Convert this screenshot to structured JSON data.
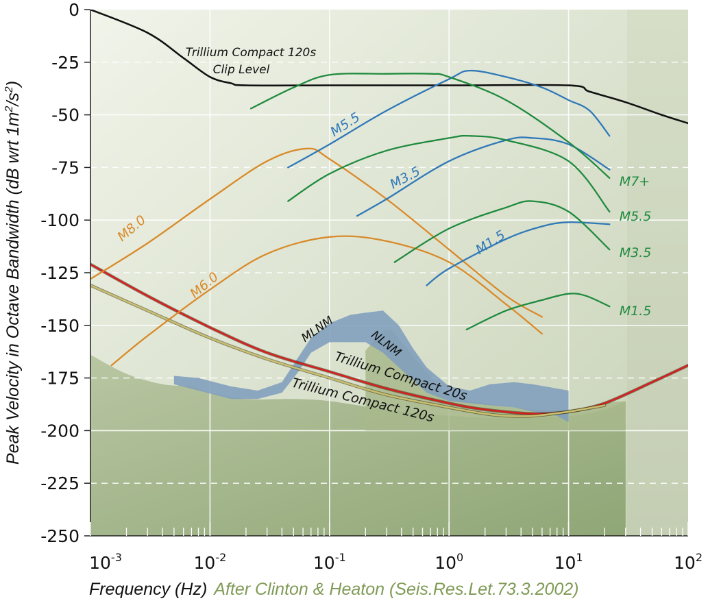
{
  "chart_data": {
    "type": "line",
    "xscale": "log",
    "xlim": [
      0.001,
      100
    ],
    "ylim": [
      -250,
      0
    ],
    "grid": true,
    "ylabel_parts": [
      "Peak Velocity in Octave Bandwidth (dB wrt 1m",
      "2",
      "/s",
      "2",
      ")"
    ],
    "xlabel": "Frequency (Hz)",
    "source_note": "After Clinton & Heaton (Seis.Res.Let.73.3.2002)",
    "y_ticks": [
      0,
      -25,
      -50,
      -75,
      -100,
      -125,
      -150,
      -175,
      -200,
      -225,
      -250
    ],
    "y_tick_labels": [
      "0",
      "-25",
      "-50",
      "-75",
      "-100",
      "-125",
      "-150",
      "-175",
      "-200",
      "-225",
      "-250"
    ],
    "x_ticks": [
      0.001,
      0.01,
      0.1,
      1,
      10,
      100
    ],
    "x_tick_labels": [
      {
        "base": "10",
        "exp": "-3"
      },
      {
        "base": "10",
        "exp": "-2"
      },
      {
        "base": "10",
        "exp": "-1"
      },
      {
        "base": "10",
        "exp": "0"
      },
      {
        "base": "10",
        "exp": "1"
      },
      {
        "base": "10",
        "exp": "2"
      }
    ],
    "regions": [
      {
        "name": "NLNM",
        "label": "NLNM",
        "color": "#a8b98c",
        "points": [
          [
            0.2,
            -162
          ],
          [
            0.3,
            -152
          ],
          [
            0.4,
            -158
          ],
          [
            0.6,
            -170
          ],
          [
            1,
            -183
          ],
          [
            2,
            -187
          ],
          [
            5,
            -190
          ],
          [
            10,
            -190
          ],
          [
            20,
            -187
          ],
          [
            30,
            -186
          ]
        ]
      },
      {
        "name": "MLNM",
        "label": "MLNM",
        "color": "#7f9ebd",
        "upper": [
          [
            0.005,
            -174
          ],
          [
            0.008,
            -175
          ],
          [
            0.015,
            -179
          ],
          [
            0.025,
            -181
          ],
          [
            0.04,
            -177
          ],
          [
            0.055,
            -165
          ],
          [
            0.07,
            -156
          ],
          [
            0.1,
            -149
          ],
          [
            0.15,
            -145
          ],
          [
            0.2,
            -144
          ],
          [
            0.28,
            -143
          ],
          [
            0.38,
            -150
          ],
          [
            0.5,
            -161
          ],
          [
            0.65,
            -170
          ],
          [
            1.0,
            -179
          ],
          [
            1.5,
            -181
          ],
          [
            2.2,
            -178
          ],
          [
            3.5,
            -177
          ],
          [
            5,
            -178
          ],
          [
            8,
            -180
          ],
          [
            10,
            -181
          ]
        ],
        "lower": [
          [
            10,
            -196
          ],
          [
            8,
            -193
          ],
          [
            5,
            -191
          ],
          [
            3.5,
            -189
          ],
          [
            2.2,
            -188
          ],
          [
            1.5,
            -187
          ],
          [
            1.0,
            -186
          ],
          [
            0.65,
            -182
          ],
          [
            0.5,
            -176
          ],
          [
            0.38,
            -170
          ],
          [
            0.28,
            -163
          ],
          [
            0.2,
            -158
          ],
          [
            0.15,
            -158
          ],
          [
            0.1,
            -158
          ],
          [
            0.07,
            -163
          ],
          [
            0.055,
            -172
          ],
          [
            0.04,
            -182
          ],
          [
            0.025,
            -185
          ],
          [
            0.015,
            -185
          ],
          [
            0.008,
            -181
          ],
          [
            0.005,
            -178
          ]
        ]
      }
    ],
    "series": [
      {
        "name": "Trillium Compact 120s Clip Level",
        "group": "clip",
        "color": "#111111",
        "label": [
          "Trillium Compact 120s",
          "Clip Level"
        ],
        "x": [
          0.001,
          0.003,
          0.006,
          0.01,
          0.015,
          0.02,
          0.1,
          1,
          10,
          15,
          30,
          60,
          100
        ],
        "y": [
          0,
          -11,
          -23,
          -32,
          -35,
          -36,
          -36,
          -36,
          -36,
          -39,
          -44,
          -50,
          -54
        ]
      },
      {
        "name": "Trillium Compact 20s",
        "group": "instrument",
        "color": "#d42020",
        "label": "Trillium Compact 20s",
        "x": [
          0.001,
          0.003,
          0.01,
          0.03,
          0.1,
          0.3,
          1,
          2,
          5,
          10,
          20,
          50,
          100
        ],
        "y": [
          -121,
          -136,
          -151,
          -163,
          -172,
          -180,
          -187,
          -190,
          -192,
          -191,
          -187,
          -177,
          -169
        ]
      },
      {
        "name": "Trillium Compact 120s",
        "group": "instrument",
        "color": "#c9c070",
        "label": "Trillium Compact 120s",
        "x": [
          0.001,
          0.003,
          0.01,
          0.03,
          0.1,
          0.3,
          1,
          2,
          3,
          5,
          10,
          20
        ],
        "y": [
          -131,
          -143,
          -156,
          -166,
          -175,
          -183,
          -189,
          -192,
          -193,
          -193,
          -191,
          -188
        ]
      },
      {
        "name": "M8.0",
        "group": "teleseismic",
        "color": "#d98a2a",
        "label": "M8.0",
        "x": [
          0.001,
          0.003,
          0.01,
          0.03,
          0.065,
          0.1,
          0.3,
          1,
          3,
          6
        ],
        "y": [
          -128,
          -111,
          -90,
          -72,
          -66,
          -71,
          -90,
          -114,
          -136,
          -146
        ]
      },
      {
        "name": "M6.0",
        "group": "teleseismic",
        "color": "#d98a2a",
        "label": "M6.0",
        "x": [
          0.0015,
          0.003,
          0.01,
          0.03,
          0.1,
          0.3,
          1,
          3,
          6
        ],
        "y": [
          -169,
          -155,
          -133,
          -116,
          -108,
          -110,
          -120,
          -140,
          -154
        ]
      },
      {
        "name": "M5.5",
        "group": "regional",
        "color": "#2f78b8",
        "label": "M5.5",
        "x": [
          0.045,
          0.1,
          0.3,
          1,
          1.5,
          3,
          6,
          10,
          15,
          22
        ],
        "y": [
          -75,
          -64,
          -48,
          -33,
          -29,
          -32,
          -37,
          -43,
          -48,
          -60
        ]
      },
      {
        "name": "M3.5",
        "group": "regional",
        "color": "#2f78b8",
        "label": "M3.5",
        "x": [
          0.17,
          0.3,
          1,
          3,
          5,
          10,
          22
        ],
        "y": [
          -98,
          -90,
          -72,
          -62,
          -61,
          -64,
          -76
        ]
      },
      {
        "name": "M1.5",
        "group": "regional",
        "color": "#2f78b8",
        "label": "M1.5",
        "x": [
          0.65,
          1,
          3,
          6,
          10,
          22
        ],
        "y": [
          -131,
          -123,
          -109,
          -103,
          -101,
          -102
        ]
      },
      {
        "name": "M7+",
        "group": "local",
        "color": "#1f8a3e",
        "label": "M7+",
        "x": [
          0.022,
          0.05,
          0.1,
          0.3,
          0.7,
          1,
          3,
          10,
          22
        ],
        "y": [
          -47,
          -37,
          -31,
          -30.5,
          -30.5,
          -32,
          -43,
          -63,
          -80
        ]
      },
      {
        "name": "M5.5",
        "group": "local",
        "color": "#1f8a3e",
        "label": "M5.5",
        "x": [
          0.045,
          0.1,
          0.3,
          1,
          1.5,
          3,
          10,
          22
        ],
        "y": [
          -91,
          -78,
          -67,
          -61,
          -60,
          -62,
          -72,
          -96
        ]
      },
      {
        "name": "M3.5",
        "group": "local",
        "color": "#1f8a3e",
        "label": "M3.5",
        "x": [
          0.35,
          1,
          3,
          5,
          10,
          22
        ],
        "y": [
          -120,
          -104,
          -94,
          -91,
          -96,
          -114
        ]
      },
      {
        "name": "M1.5",
        "group": "local",
        "color": "#1f8a3e",
        "label": "M1.5",
        "x": [
          1.4,
          3,
          6,
          10,
          14,
          22
        ],
        "y": [
          -152,
          -143,
          -138,
          -135,
          -136,
          -141
        ]
      }
    ]
  }
}
